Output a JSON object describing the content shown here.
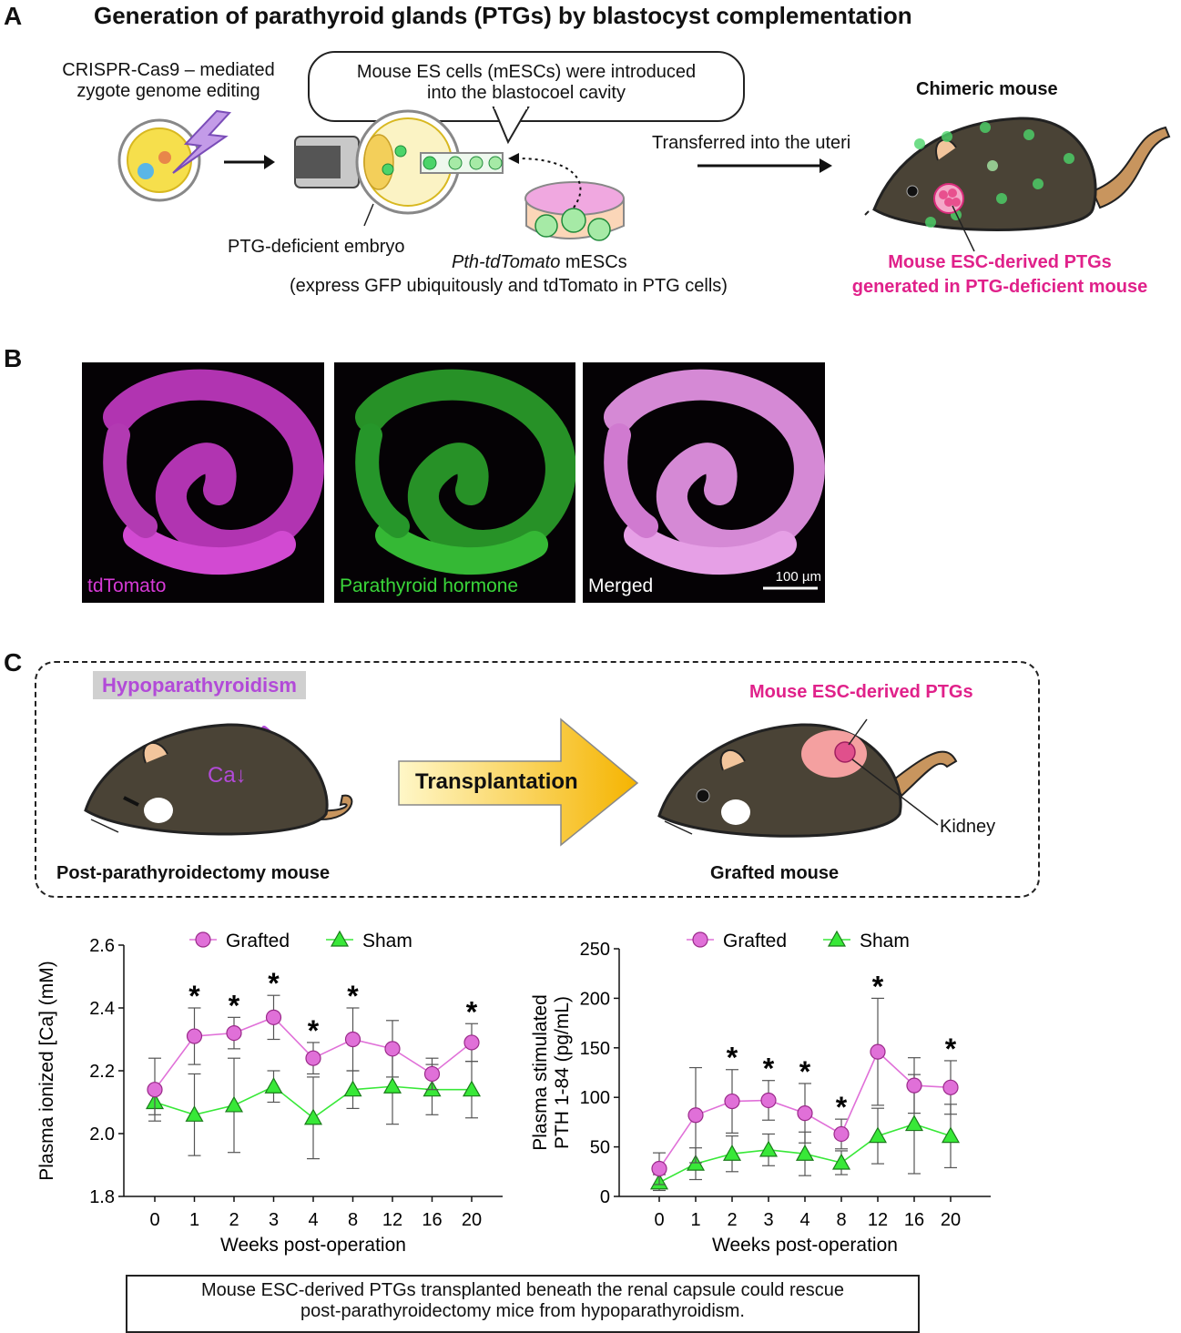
{
  "panel_a": {
    "letter": "A",
    "title": "Generation of  parathyroid glands (PTGs) by blastocyst complementation",
    "crispr_line1": "CRISPR-Cas9 – mediated",
    "crispr_line2": "zygote genome editing",
    "bubble_line1": "Mouse ES cells (mESCs) were introduced",
    "bubble_line2": "into the blastocoel cavity",
    "embryo_label": "PTG-deficient embryo",
    "mesc_italic": "Pth-tdTomato",
    "mesc_suffix": " mESCs",
    "mesc_note": "(express GFP ubiquitously and tdTomato in PTG cells)",
    "transfer_label": "Transferred into the uteri",
    "chimeric_label": "Chimeric mouse",
    "ptg_result_line1": "Mouse ESC-derived PTGs",
    "ptg_result_line2": "generated in PTG-deficient mouse"
  },
  "panel_b": {
    "letter": "B",
    "images": [
      {
        "label": "tdTomato",
        "color": "#d63ad6"
      },
      {
        "label": "Parathyroid hormone",
        "color": "#3ad63a"
      },
      {
        "label": "Merged",
        "color": "#ffffff"
      }
    ],
    "scale_bar": "100 µm"
  },
  "panel_c": {
    "letter": "C",
    "hypo_label": "Hypoparathyroidism",
    "ca_label": "Ca↓",
    "left_mouse_label": "Post-parathyroidectomy mouse",
    "transplant_label": "Transplantation",
    "ptg_label": "Mouse ESC-derived PTGs",
    "kidney_label": "Kidney",
    "right_mouse_label": "Grafted mouse",
    "conclusion_line1": "Mouse ESC-derived PTGs transplanted beneath the renal capsule could rescue",
    "conclusion_line2": "post-parathyroidectomy mice from hypoparathyroidism."
  },
  "colors": {
    "grafted": "#e070d8",
    "sham": "#38e838",
    "magenta_text": "#e0218a",
    "purple_text": "#b24ad8"
  },
  "chart_data": [
    {
      "type": "line",
      "categories": [
        "0",
        "1",
        "2",
        "3",
        "4",
        "8",
        "12",
        "16",
        "20"
      ],
      "series": [
        {
          "name": "Grafted",
          "values": [
            2.14,
            2.31,
            2.32,
            2.37,
            2.24,
            2.3,
            2.27,
            2.19,
            2.29
          ],
          "err_hi": [
            0.1,
            0.09,
            0.05,
            0.07,
            0.05,
            0.1,
            0.09,
            0.05,
            0.06
          ],
          "err_lo": [
            0.1,
            0.09,
            0.05,
            0.07,
            0.05,
            0.1,
            0.09,
            0.05,
            0.06
          ]
        },
        {
          "name": "Sham",
          "values": [
            2.1,
            2.06,
            2.09,
            2.15,
            2.05,
            2.14,
            2.15,
            2.14,
            2.14
          ],
          "err_hi": [
            0.04,
            0.13,
            0.15,
            0.05,
            0.13,
            0.06,
            0.12,
            0.08,
            0.09
          ],
          "err_lo": [
            0.04,
            0.13,
            0.15,
            0.05,
            0.13,
            0.06,
            0.12,
            0.08,
            0.09
          ]
        }
      ],
      "significance": [
        "",
        "*",
        "*",
        "*",
        "*",
        "*",
        "",
        "",
        "*"
      ],
      "title": "",
      "xlabel": "Weeks post-operation",
      "ylabel": "Plasma ionized [Ca] (mM)",
      "ylim": [
        1.8,
        2.6
      ],
      "yticks": [
        "1.8",
        "2.0",
        "2.2",
        "2.4",
        "2.6"
      ],
      "legend_position": "top",
      "grid": false
    },
    {
      "type": "line",
      "categories": [
        "0",
        "1",
        "2",
        "3",
        "4",
        "8",
        "12",
        "16",
        "20"
      ],
      "series": [
        {
          "name": "Grafted",
          "values": [
            28,
            82,
            96,
            97,
            84,
            63,
            146,
            112,
            110
          ],
          "err_hi": [
            16,
            48,
            32,
            20,
            30,
            15,
            54,
            28,
            27
          ],
          "err_lo": [
            16,
            48,
            32,
            20,
            30,
            15,
            54,
            28,
            27
          ]
        },
        {
          "name": "Sham",
          "values": [
            14,
            33,
            43,
            47,
            43,
            34,
            61,
            73,
            61
          ],
          "err_hi": [
            8,
            16,
            18,
            16,
            22,
            12,
            28,
            50,
            32
          ],
          "err_lo": [
            8,
            16,
            18,
            16,
            22,
            12,
            28,
            50,
            32
          ]
        }
      ],
      "significance": [
        "",
        "",
        "*",
        "*",
        "*",
        "*",
        "*",
        "",
        "*"
      ],
      "title": "",
      "xlabel": "Weeks post-operation",
      "ylabel_line1": "Plasma stimulated",
      "ylabel_line2": "PTH 1-84 (pg/mL)",
      "ylim": [
        0,
        250
      ],
      "yticks": [
        "0",
        "50",
        "100",
        "150",
        "200",
        "250"
      ],
      "legend_position": "top",
      "grid": false
    }
  ]
}
